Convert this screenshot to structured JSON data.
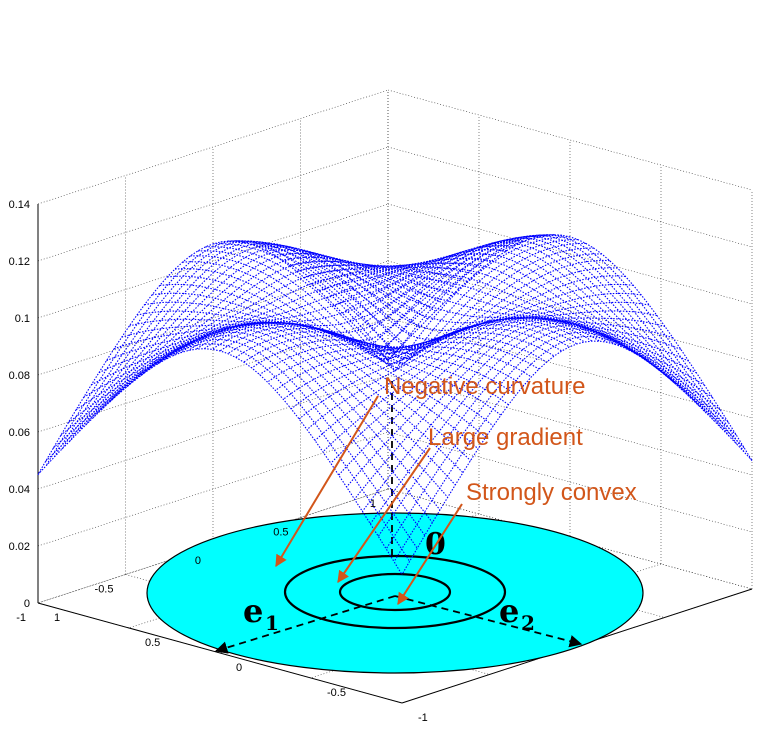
{
  "chart_data": {
    "type": "surface3d",
    "title": "",
    "z_ticks": [
      "0",
      "0.02",
      "0.04",
      "0.06",
      "0.08",
      "0.1",
      "0.12",
      "0.14"
    ],
    "x_ticks": [
      "-1",
      "-0.5",
      "0",
      "0.5",
      "1"
    ],
    "y_ticks": [
      "-1",
      "-0.5",
      "0",
      "0.5",
      "1"
    ],
    "zlim": [
      0,
      0.14
    ],
    "xlim": [
      -1,
      1
    ],
    "ylim": [
      -1,
      1
    ],
    "grid": true,
    "surface": {
      "center_z": 0.079,
      "peak_z": 0.14,
      "corner_z_range": [
        0.06,
        0.115
      ],
      "color": "#0000ff"
    },
    "disk": {
      "fill_color": "#00ffff",
      "z": 0,
      "rings": [
        "inner",
        "middle"
      ]
    },
    "labels": {
      "origin": "0",
      "e1": "e",
      "e1_sub": "1",
      "e2": "e",
      "e2_sub": "2"
    },
    "annotations": [
      "Negative curvature",
      "Large gradient",
      "Strongly convex"
    ],
    "annotation_color": "#d2561a"
  }
}
